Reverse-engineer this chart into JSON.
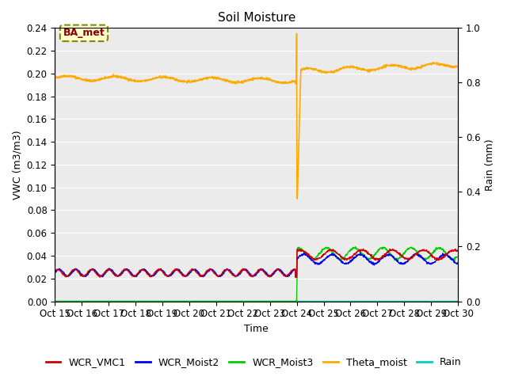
{
  "title": "Soil Moisture",
  "xlabel": "Time",
  "ylabel_left": "VWC (m3/m3)",
  "ylabel_right": "Rain (mm)",
  "xlim": [
    0,
    15
  ],
  "ylim_left": [
    0.0,
    0.24
  ],
  "ylim_right": [
    0.0,
    1.0
  ],
  "xtick_labels": [
    "Oct 15",
    "Oct 16",
    "Oct 17",
    "Oct 18",
    "Oct 19",
    "Oct 20",
    "Oct 21",
    "Oct 22",
    "Oct 23",
    "Oct 24",
    "Oct 25",
    "Oct 26",
    "Oct 27",
    "Oct 28",
    "Oct 29",
    "Oct 30"
  ],
  "yticks_left": [
    0.0,
    0.02,
    0.04,
    0.06,
    0.08,
    0.1,
    0.12,
    0.14,
    0.16,
    0.18,
    0.2,
    0.22,
    0.24
  ],
  "yticks_right": [
    0.0,
    0.2,
    0.4,
    0.6,
    0.8,
    1.0
  ],
  "station_label": "BA_met",
  "colors": {
    "WCR_VMC1": "#cc0000",
    "WCR_Moist2": "#0000ee",
    "WCR_Moist3": "#00cc00",
    "Theta_moist": "#ffaa00",
    "Rain": "#00cccc"
  },
  "background_color": "#ebebeb",
  "grid_color": "#ffffff",
  "title_fontsize": 11,
  "label_fontsize": 9,
  "tick_fontsize": 8.5,
  "legend_fontsize": 9
}
